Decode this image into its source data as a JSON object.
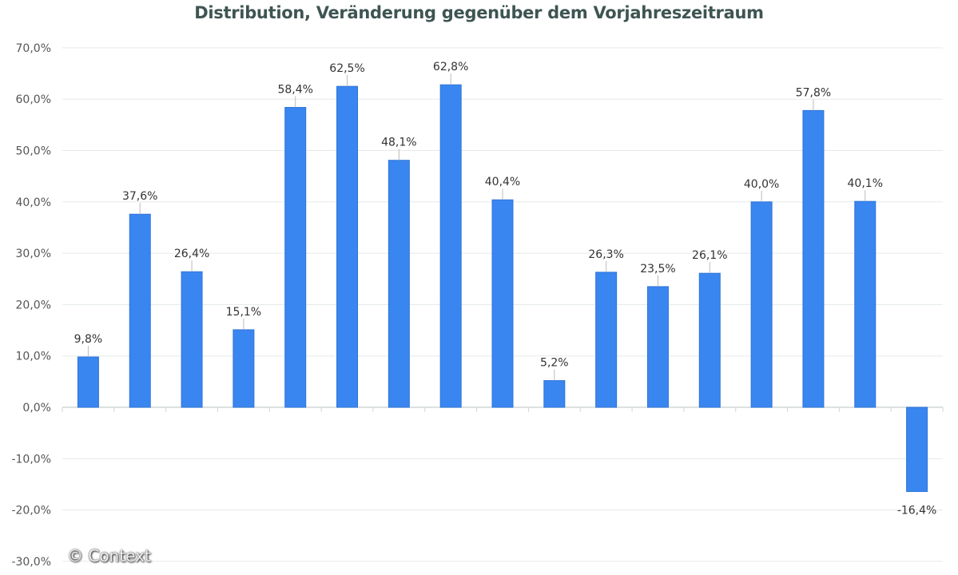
{
  "chart_data": {
    "type": "bar",
    "title": "Distribution, Veränderung gegenüber dem Vorjahreszeitraum",
    "values": [
      9.8,
      37.6,
      26.4,
      15.1,
      58.4,
      62.5,
      48.1,
      62.8,
      40.4,
      5.2,
      26.3,
      23.5,
      26.1,
      40.0,
      57.8,
      40.1,
      -16.4
    ],
    "data_labels": [
      "9,8%",
      "37,6%",
      "26,4%",
      "15,1%",
      "58,4%",
      "62,5%",
      "48,1%",
      "62,8%",
      "40,4%",
      "5,2%",
      "26,3%",
      "23,5%",
      "26,1%",
      "40,0%",
      "57,8%",
      "40,1%",
      "-16,4%"
    ],
    "yticks": [
      70,
      60,
      50,
      40,
      30,
      20,
      10,
      0,
      -10,
      -20,
      -30
    ],
    "ytick_labels": [
      "70,0%",
      "60,0%",
      "50,0%",
      "40,0%",
      "30,0%",
      "20,0%",
      "10,0%",
      "0,0%",
      "-10,0%",
      "-20,0%",
      "-30,0%"
    ],
    "ylim": [
      -30,
      70
    ],
    "grid": true,
    "bar_color": "#3a86f0",
    "xlabel": "",
    "ylabel": ""
  },
  "watermark": "© Context"
}
